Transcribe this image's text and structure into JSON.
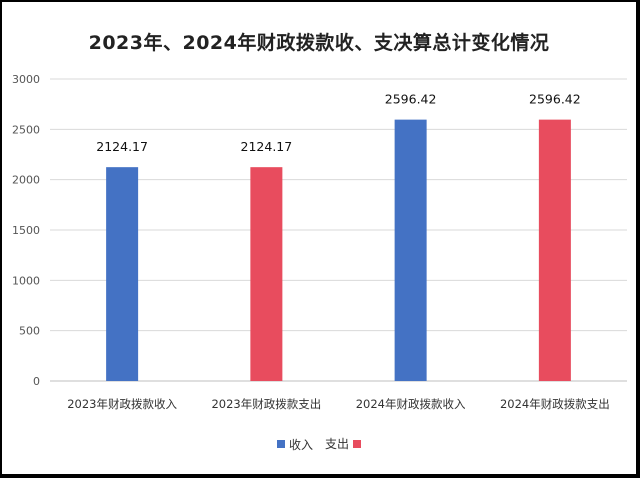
{
  "colors": {
    "income": "#4472c4",
    "expense": "#e84c5e",
    "grid": "#d9d9d9",
    "axis": "#bfbfbf"
  },
  "chart_data": {
    "type": "bar",
    "title": "2023年、2024年财政拨款收、支决算总计变化情况",
    "categories": [
      "2023年财政拨款收入",
      "2023年财政拨款支出",
      "2024年财政拨款收入",
      "2024年财政拨款支出"
    ],
    "values": [
      2124.17,
      2124.17,
      2596.42,
      2596.42
    ],
    "value_labels": [
      "2124.17",
      "2124.17",
      "2596.42",
      "2596.42"
    ],
    "series_of_bar": [
      "收入",
      "支出",
      "收入",
      "支出"
    ],
    "legend": [
      {
        "name": "收入",
        "color": "#4472c4"
      },
      {
        "name": "支出",
        "color": "#e84c5e"
      }
    ],
    "legend_position": "bottom",
    "yticks": [
      "0",
      "500",
      "1000",
      "1500",
      "2000",
      "2500",
      "3000"
    ],
    "ylim": [
      0,
      3000
    ],
    "grid": true
  }
}
